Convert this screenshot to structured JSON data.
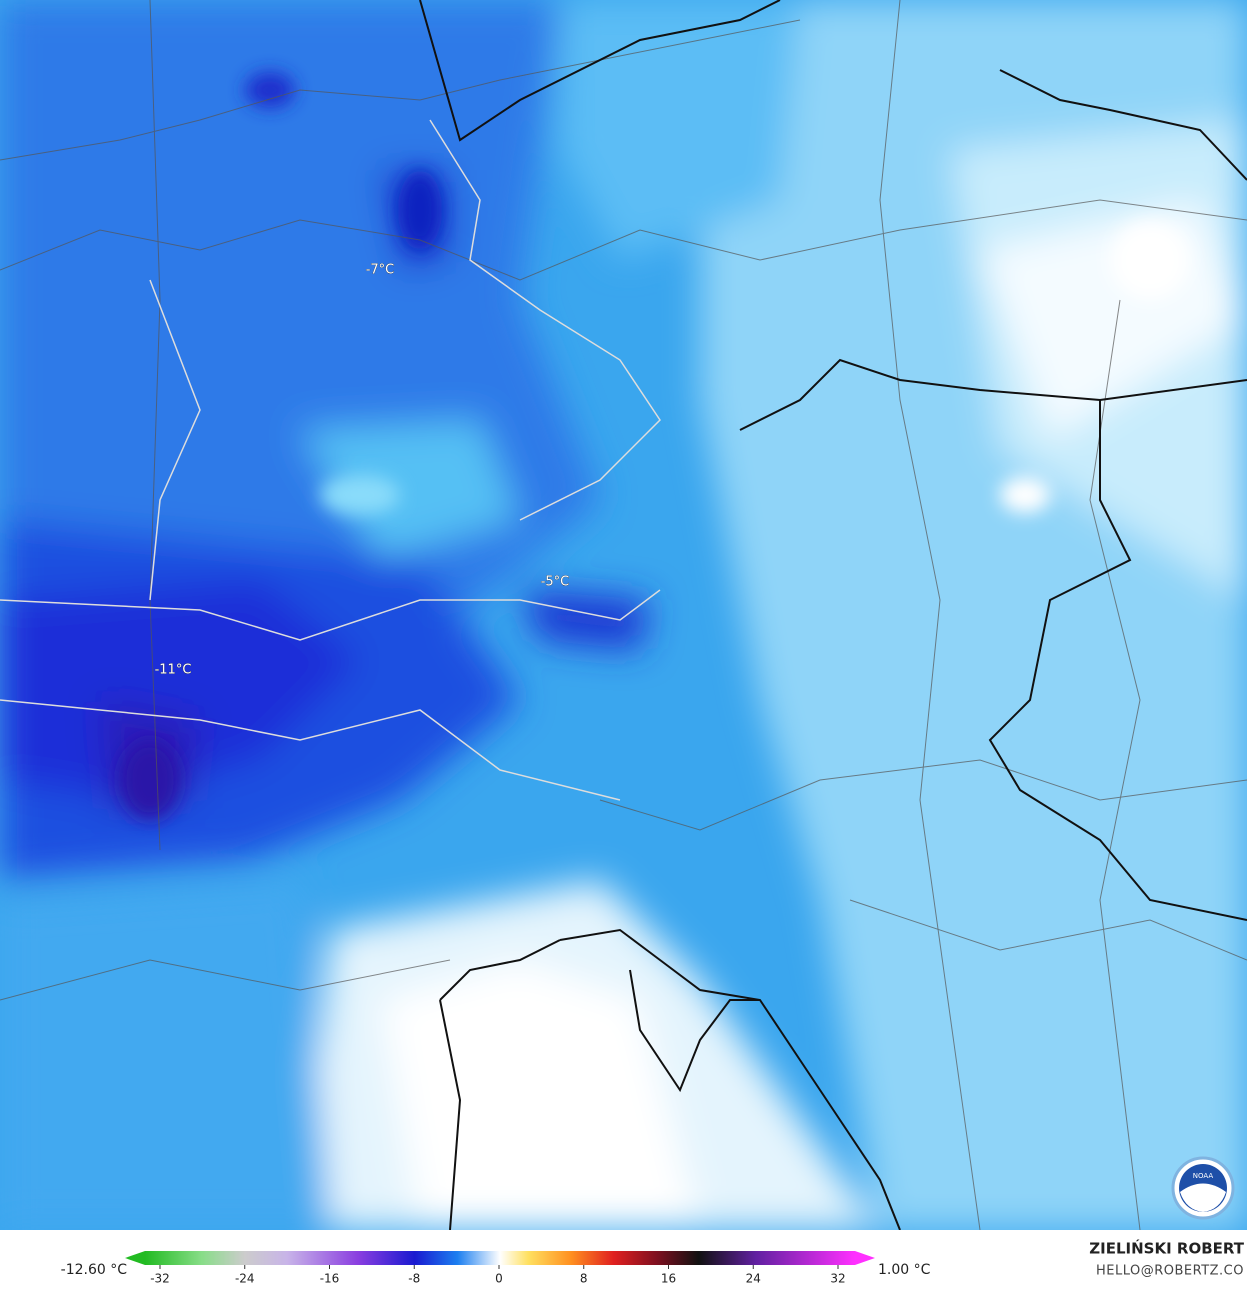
{
  "map": {
    "labels": [
      "-7°C",
      "-5°C",
      "-11°C"
    ]
  },
  "legend": {
    "min": "-12.60 °C",
    "max": "1.00 °C",
    "ticks": [
      -32,
      -24,
      -16,
      -8,
      0,
      8,
      16,
      24,
      32
    ]
  },
  "credits": {
    "name": "ZIELIŃSKI ROBERT",
    "email": "HELLO@ROBERTZ.CO",
    "logo": "NOAA"
  }
}
